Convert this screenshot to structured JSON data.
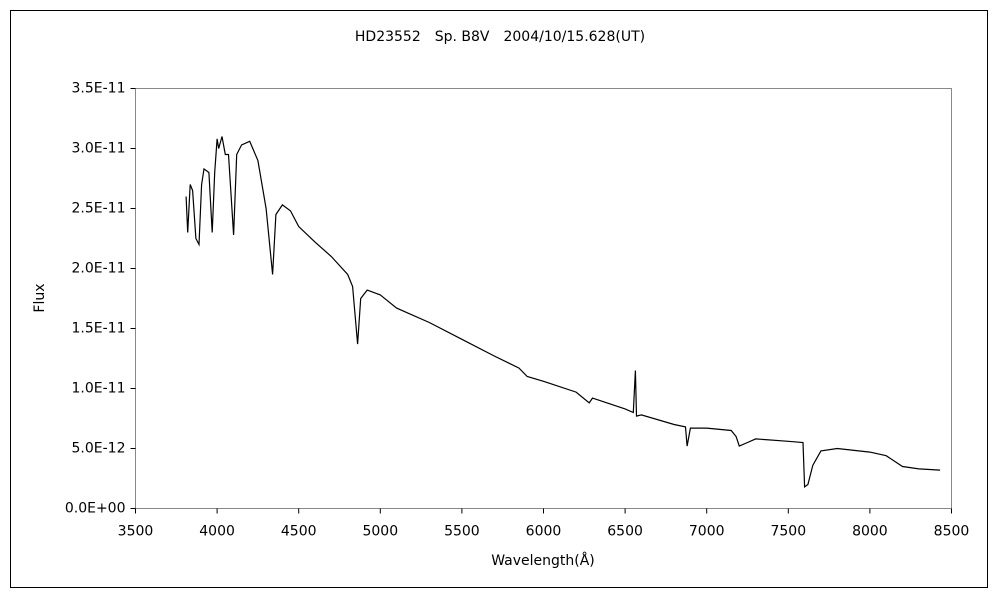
{
  "chart_data": {
    "type": "line",
    "title": "HD23552　Sp. B8V　2004/10/15.628(UT)",
    "x_label": "Wavelength(Å)",
    "y_label": "Flux",
    "xlim": [
      3500,
      8500
    ],
    "xticks": [
      3500,
      4000,
      4500,
      5000,
      5500,
      6000,
      6500,
      7000,
      7500,
      8000,
      8500
    ],
    "ylim": [
      0,
      3.5e-11
    ],
    "yticks": [
      {
        "value": 0,
        "label": "0.0E+00"
      },
      {
        "value": 5e-12,
        "label": "5.0E-12"
      },
      {
        "value": 1e-11,
        "label": "1.0E-11"
      },
      {
        "value": 1.5e-11,
        "label": "1.5E-11"
      },
      {
        "value": 2e-11,
        "label": "2.0E-11"
      },
      {
        "value": 2.5e-11,
        "label": "2.5E-11"
      },
      {
        "value": 3e-11,
        "label": "3.0E-11"
      },
      {
        "value": 3.5e-11,
        "label": "3.5E-11"
      }
    ],
    "grid": false,
    "color": "#000000",
    "x": [
      3810,
      3820,
      3835,
      3850,
      3870,
      3889,
      3905,
      3920,
      3950,
      3970,
      3985,
      4000,
      4010,
      4030,
      4050,
      4070,
      4101,
      4120,
      4150,
      4200,
      4250,
      4300,
      4340,
      4360,
      4400,
      4450,
      4500,
      4600,
      4700,
      4800,
      4830,
      4861,
      4880,
      4920,
      5000,
      5100,
      5300,
      5500,
      5700,
      5850,
      5900,
      6000,
      6200,
      6280,
      6300,
      6500,
      6550,
      6563,
      6570,
      6600,
      6800,
      6870,
      6880,
      6900,
      7000,
      7150,
      7180,
      7200,
      7250,
      7300,
      7500,
      7590,
      7600,
      7620,
      7650,
      7700,
      7800,
      8000,
      8100,
      8200,
      8300,
      8430
    ],
    "values": [
      2.6e-11,
      2.3e-11,
      2.7e-11,
      2.65e-11,
      2.25e-11,
      2.2e-11,
      2.7e-11,
      2.83e-11,
      2.8e-11,
      2.3e-11,
      2.8e-11,
      3.08e-11,
      3e-11,
      3.1e-11,
      2.95e-11,
      2.95e-11,
      2.28e-11,
      2.95e-11,
      3.03e-11,
      3.06e-11,
      2.9e-11,
      2.5e-11,
      1.95e-11,
      2.45e-11,
      2.53e-11,
      2.48e-11,
      2.35e-11,
      2.22e-11,
      2.1e-11,
      1.95e-11,
      1.85e-11,
      1.37e-11,
      1.75e-11,
      1.82e-11,
      1.78e-11,
      1.67e-11,
      1.55e-11,
      1.41e-11,
      1.27e-11,
      1.17e-11,
      1.1e-11,
      1.06e-11,
      9.7e-12,
      8.8e-12,
      9.2e-12,
      8.3e-12,
      8e-12,
      1.15e-11,
      7.7e-12,
      7.8e-12,
      7e-12,
      6.8e-12,
      5.2e-12,
      6.7e-12,
      6.7e-12,
      6.5e-12,
      6e-12,
      5.2e-12,
      5.5e-12,
      5.8e-12,
      5.6e-12,
      5.5e-12,
      1.8e-12,
      2e-12,
      3.6e-12,
      4.8e-12,
      5e-12,
      4.7e-12,
      4.4e-12,
      3.5e-12,
      3.3e-12,
      3.2e-12
    ]
  }
}
